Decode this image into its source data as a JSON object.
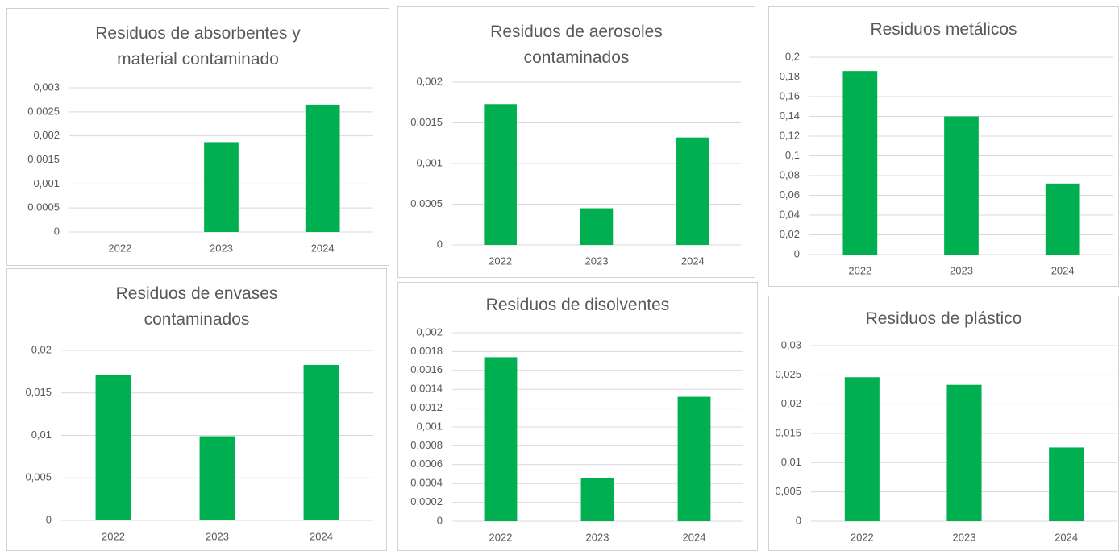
{
  "chart_data": [
    {
      "type": "bar",
      "title": "Residuos de absorbentes y material contaminado",
      "categories": [
        "2022",
        "2023",
        "2024"
      ],
      "values": [
        0,
        0.00187,
        0.00265
      ],
      "color": "#00b050",
      "ylim": [
        0,
        0.003
      ],
      "yticks": [
        0,
        {
          "value": 0.0005,
          "label": "0,0005"
        },
        {
          "value": 0.001,
          "label": "0,001"
        },
        {
          "value": 0.0015,
          "label": "0,0015"
        },
        {
          "value": 0.002,
          "label": "0,002"
        },
        {
          "value": 0.0025,
          "label": "0,0025"
        },
        {
          "value": 0.003,
          "label": "0,003"
        }
      ],
      "grid": true
    },
    {
      "type": "bar",
      "title": "Residuos de aerosoles contaminados",
      "categories": [
        "2022",
        "2023",
        "2024"
      ],
      "values": [
        0.00173,
        0.00045,
        0.00132
      ],
      "color": "#00b050",
      "ylim": [
        0,
        0.002
      ],
      "yticks": [
        0,
        {
          "value": 0.0005,
          "label": "0,0005"
        },
        {
          "value": 0.001,
          "label": "0,001"
        },
        {
          "value": 0.0015,
          "label": "0,0015"
        },
        {
          "value": 0.002,
          "label": "0,002"
        }
      ],
      "grid": true
    },
    {
      "type": "bar",
      "title": "Residuos metálicos",
      "categories": [
        "2022",
        "2023",
        "2024"
      ],
      "values": [
        0.186,
        0.14,
        0.072
      ],
      "color": "#00b050",
      "ylim": [
        0,
        0.2
      ],
      "yticks": [
        0,
        {
          "value": 0.02,
          "label": "0,02"
        },
        {
          "value": 0.04,
          "label": "0,04"
        },
        {
          "value": 0.06,
          "label": "0,06"
        },
        {
          "value": 0.08,
          "label": "0,08"
        },
        {
          "value": 0.1,
          "label": "0,1"
        },
        {
          "value": 0.12,
          "label": "0,12"
        },
        {
          "value": 0.14,
          "label": "0,14"
        },
        {
          "value": 0.16,
          "label": "0,16"
        },
        {
          "value": 0.18,
          "label": "0,18"
        },
        {
          "value": 0.2,
          "label": "0,2"
        }
      ],
      "grid": true
    },
    {
      "type": "bar",
      "title": "Residuos de envases contaminados",
      "categories": [
        "2022",
        "2023",
        "2024"
      ],
      "values": [
        0.0171,
        0.0099,
        0.0183
      ],
      "color": "#00b050",
      "ylim": [
        0,
        0.02
      ],
      "yticks": [
        0,
        {
          "value": 0.005,
          "label": "0,005"
        },
        {
          "value": 0.01,
          "label": "0,01"
        },
        {
          "value": 0.015,
          "label": "0,015"
        },
        {
          "value": 0.02,
          "label": "0,02"
        }
      ],
      "grid": true
    },
    {
      "type": "bar",
      "title": "Residuos de disolventes",
      "categories": [
        "2022",
        "2023",
        "2024"
      ],
      "values": [
        0.00174,
        0.00046,
        0.00132
      ],
      "color": "#00b050",
      "ylim": [
        0,
        0.002
      ],
      "yticks": [
        0,
        {
          "value": 0.0002,
          "label": "0,0002"
        },
        {
          "value": 0.0004,
          "label": "0,0004"
        },
        {
          "value": 0.0006,
          "label": "0,0006"
        },
        {
          "value": 0.0008,
          "label": "0,0008"
        },
        {
          "value": 0.001,
          "label": "0,001"
        },
        {
          "value": 0.0012,
          "label": "0,0012"
        },
        {
          "value": 0.0014,
          "label": "0,0014"
        },
        {
          "value": 0.0016,
          "label": "0,0016"
        },
        {
          "value": 0.0018,
          "label": "0,0018"
        },
        {
          "value": 0.002,
          "label": "0,002"
        }
      ],
      "grid": true
    },
    {
      "type": "bar",
      "title": "Residuos de plástico",
      "categories": [
        "2022",
        "2023",
        "2024"
      ],
      "values": [
        0.0246,
        0.0233,
        0.0126
      ],
      "color": "#00b050",
      "ylim": [
        0,
        0.03
      ],
      "yticks": [
        0,
        {
          "value": 0.005,
          "label": "0,005"
        },
        {
          "value": 0.01,
          "label": "0,01"
        },
        {
          "value": 0.015,
          "label": "0,015"
        },
        {
          "value": 0.02,
          "label": "0,02"
        },
        {
          "value": 0.025,
          "label": "0,025"
        },
        {
          "value": 0.03,
          "label": "0,03"
        }
      ],
      "grid": true
    }
  ]
}
